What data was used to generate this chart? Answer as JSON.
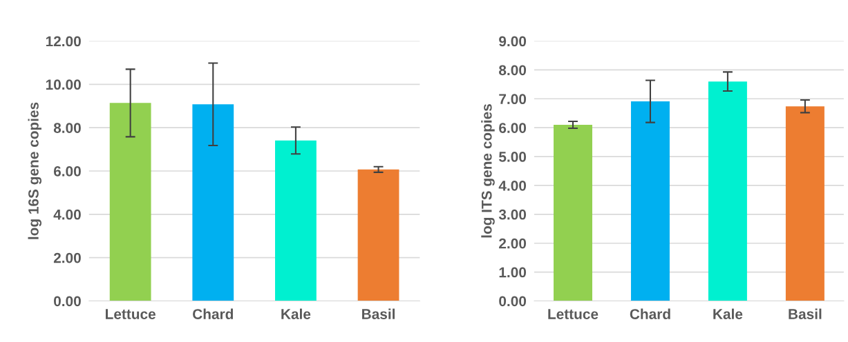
{
  "chart_data": [
    {
      "type": "bar",
      "ylabel": "log 16S gene copies",
      "categories": [
        "Lettuce",
        "Chard",
        "Kale",
        "Basil"
      ],
      "values": [
        9.14,
        9.08,
        7.41,
        6.07
      ],
      "colors": [
        "#92d050",
        "#00b0f0",
        "#00f0d0",
        "#ed7d31"
      ],
      "errors": [
        1.56,
        1.9,
        0.62,
        0.13
      ],
      "ylim": [
        0,
        12
      ],
      "yticks": [
        {
          "value": 0,
          "label": "0.00"
        },
        {
          "value": 2,
          "label": "2.00"
        },
        {
          "value": 4,
          "label": "4.00"
        },
        {
          "value": 6,
          "label": "6.00"
        },
        {
          "value": 8,
          "label": "8.00"
        },
        {
          "value": 10,
          "label": "10.00"
        },
        {
          "value": 12,
          "label": "12.00"
        }
      ],
      "grid": "y"
    },
    {
      "type": "bar",
      "ylabel": "log ITS gene copies",
      "categories": [
        "Lettuce",
        "Chard",
        "Kale",
        "Basil"
      ],
      "values": [
        6.1,
        6.91,
        7.6,
        6.74
      ],
      "colors": [
        "#92d050",
        "#00b0f0",
        "#00f0d0",
        "#ed7d31"
      ],
      "errors": [
        0.12,
        0.73,
        0.33,
        0.22
      ],
      "ylim": [
        0,
        9
      ],
      "yticks": [
        {
          "value": 0,
          "label": "0.00"
        },
        {
          "value": 1,
          "label": "1.00"
        },
        {
          "value": 2,
          "label": "2.00"
        },
        {
          "value": 3,
          "label": "3.00"
        },
        {
          "value": 4,
          "label": "4.00"
        },
        {
          "value": 5,
          "label": "5.00"
        },
        {
          "value": 6,
          "label": "6.00"
        },
        {
          "value": 7,
          "label": "7.00"
        },
        {
          "value": 8,
          "label": "8.00"
        },
        {
          "value": 9,
          "label": "9.00"
        }
      ],
      "grid": "y"
    }
  ]
}
